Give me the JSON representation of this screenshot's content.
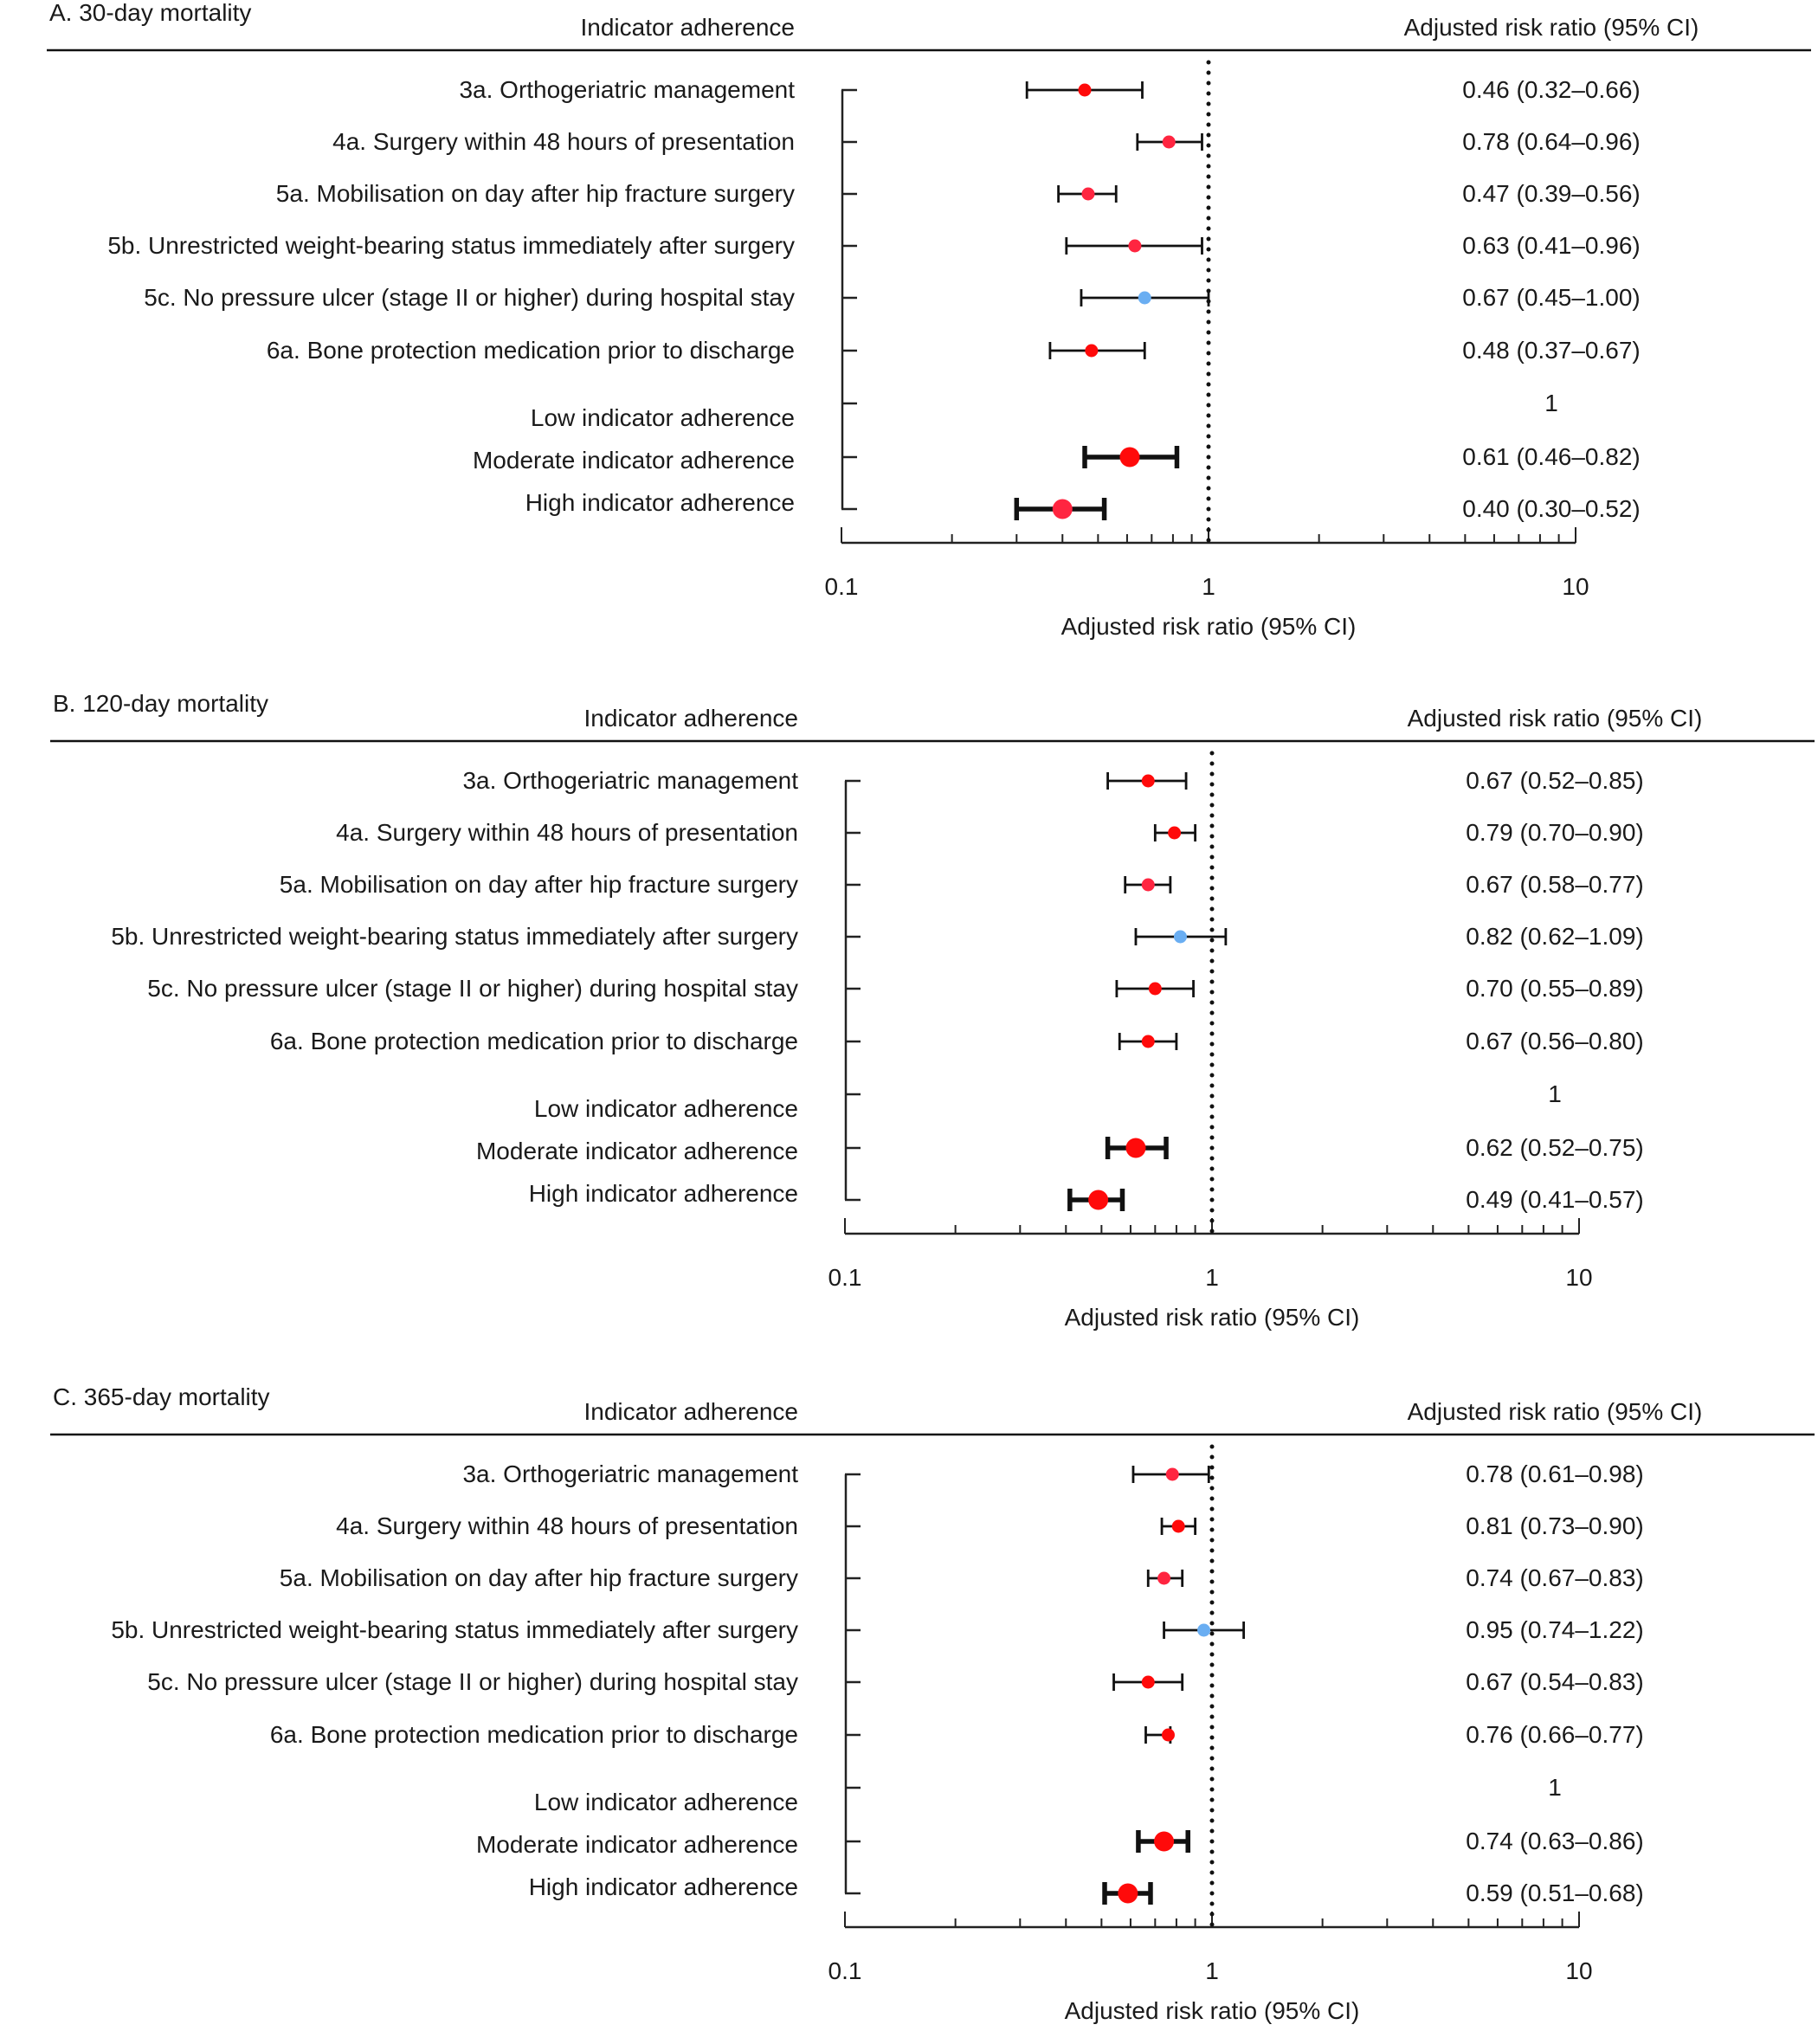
{
  "chart_data": [
    {
      "type": "forest",
      "title": "A. 30-day mortality",
      "left_header": "Indicator adherence",
      "right_header": "Adjusted risk ratio (95% CI)",
      "xlabel": "Adjusted risk ratio (95% CI)",
      "xscale": "log",
      "xlim": [
        0.1,
        10
      ],
      "xticks": [
        "0.1",
        "1",
        "10"
      ],
      "reference_line": 1,
      "rows": [
        {
          "label": "3a. Orthogeriatric management",
          "rr": 0.46,
          "lo": 0.32,
          "hi": 0.66,
          "text": "0.46 (0.32–0.66)",
          "color": "#ff0a0a"
        },
        {
          "label": "4a. Surgery within 48 hours of presentation",
          "rr": 0.78,
          "lo": 0.64,
          "hi": 0.96,
          "text": "0.78 (0.64–0.96)",
          "color": "#ff2540"
        },
        {
          "label": "5a. Mobilisation on day after hip fracture surgery",
          "rr": 0.47,
          "lo": 0.39,
          "hi": 0.56,
          "text": "0.47 (0.39–0.56)",
          "color": "#ff2540"
        },
        {
          "label": "5b. Unrestricted weight-bearing status immediately after surgery",
          "rr": 0.63,
          "lo": 0.41,
          "hi": 0.96,
          "text": "0.63 (0.41–0.96)",
          "color": "#ff2540"
        },
        {
          "label": "5c. No pressure ulcer (stage II or higher) during hospital stay",
          "rr": 0.67,
          "lo": 0.45,
          "hi": 1.0,
          "text": "0.67 (0.45–1.00)",
          "color": "#6aaef2"
        },
        {
          "label": "6a. Bone protection medication prior to discharge",
          "rr": 0.48,
          "lo": 0.37,
          "hi": 0.67,
          "text": "0.48 (0.37–0.67)",
          "color": "#ff0a0a"
        },
        {
          "label": "Low indicator adherence",
          "rr": null,
          "text": "1",
          "summary": true
        },
        {
          "label": "Moderate indicator adherence",
          "rr": 0.61,
          "lo": 0.46,
          "hi": 0.82,
          "text": "0.61 (0.46–0.82)",
          "color": "#ff0a0a",
          "summary": true
        },
        {
          "label": "High indicator adherence",
          "rr": 0.4,
          "lo": 0.3,
          "hi": 0.52,
          "text": "0.40 (0.30–0.52)",
          "color": "#ff2540",
          "summary": true
        }
      ]
    },
    {
      "type": "forest",
      "title": "B. 120-day mortality",
      "left_header": "Indicator adherence",
      "right_header": "Adjusted risk ratio (95% CI)",
      "xlabel": "Adjusted risk ratio (95% CI)",
      "xscale": "log",
      "xlim": [
        0.1,
        10
      ],
      "xticks": [
        "0.1",
        "1",
        "10"
      ],
      "reference_line": 1,
      "rows": [
        {
          "label": "3a. Orthogeriatric management",
          "rr": 0.67,
          "lo": 0.52,
          "hi": 0.85,
          "text": "0.67 (0.52–0.85)",
          "color": "#ff0a0a"
        },
        {
          "label": "4a. Surgery within 48 hours of presentation",
          "rr": 0.79,
          "lo": 0.7,
          "hi": 0.9,
          "text": "0.79 (0.70–0.90)",
          "color": "#ff0a0a"
        },
        {
          "label": "5a. Mobilisation on day after hip fracture surgery",
          "rr": 0.67,
          "lo": 0.58,
          "hi": 0.77,
          "text": "0.67 (0.58–0.77)",
          "color": "#ff2540"
        },
        {
          "label": "5b. Unrestricted weight-bearing status immediately after surgery",
          "rr": 0.82,
          "lo": 0.62,
          "hi": 1.09,
          "text": "0.82 (0.62–1.09)",
          "color": "#6aaef2"
        },
        {
          "label": "5c. No pressure ulcer (stage II or higher) during hospital stay",
          "rr": 0.7,
          "lo": 0.55,
          "hi": 0.89,
          "text": "0.70 (0.55–0.89)",
          "color": "#ff0a0a"
        },
        {
          "label": "6a. Bone protection medication prior to discharge",
          "rr": 0.67,
          "lo": 0.56,
          "hi": 0.8,
          "text": "0.67 (0.56–0.80)",
          "color": "#ff0a0a"
        },
        {
          "label": "Low indicator adherence",
          "rr": null,
          "text": "1",
          "summary": true
        },
        {
          "label": "Moderate indicator adherence",
          "rr": 0.62,
          "lo": 0.52,
          "hi": 0.75,
          "text": "0.62 (0.52–0.75)",
          "color": "#ff0a0a",
          "summary": true
        },
        {
          "label": "High indicator adherence",
          "rr": 0.49,
          "lo": 0.41,
          "hi": 0.57,
          "text": "0.49 (0.41–0.57)",
          "color": "#ff0a0a",
          "summary": true
        }
      ]
    },
    {
      "type": "forest",
      "title": "C. 365-day mortality",
      "left_header": "Indicator adherence",
      "right_header": "Adjusted risk ratio (95% CI)",
      "xlabel": "Adjusted risk ratio (95% CI)",
      "xscale": "log",
      "xlim": [
        0.1,
        10
      ],
      "xticks": [
        "0.1",
        "1",
        "10"
      ],
      "reference_line": 1,
      "rows": [
        {
          "label": "3a. Orthogeriatric management",
          "rr": 0.78,
          "lo": 0.61,
          "hi": 0.98,
          "text": "0.78 (0.61–0.98)",
          "color": "#ff2540"
        },
        {
          "label": "4a. Surgery within 48 hours of presentation",
          "rr": 0.81,
          "lo": 0.73,
          "hi": 0.9,
          "text": "0.81 (0.73–0.90)",
          "color": "#ff0a0a"
        },
        {
          "label": "5a. Mobilisation on day after hip fracture surgery",
          "rr": 0.74,
          "lo": 0.67,
          "hi": 0.83,
          "text": "0.74 (0.67–0.83)",
          "color": "#ff2540"
        },
        {
          "label": "5b. Unrestricted weight-bearing status immediately after surgery",
          "rr": 0.95,
          "lo": 0.74,
          "hi": 1.22,
          "text": "0.95 (0.74–1.22)",
          "color": "#6aaef2"
        },
        {
          "label": "5c. No pressure ulcer (stage II or higher) during hospital stay",
          "rr": 0.67,
          "lo": 0.54,
          "hi": 0.83,
          "text": "0.67 (0.54–0.83)",
          "color": "#ff0a0a"
        },
        {
          "label": "6a. Bone protection medication prior to discharge",
          "rr": 0.76,
          "lo": 0.66,
          "hi": 0.77,
          "text": "0.76 (0.66–0.77)",
          "color": "#ff0a0a"
        },
        {
          "label": "Low indicator adherence",
          "rr": null,
          "text": "1",
          "summary": true
        },
        {
          "label": "Moderate indicator adherence",
          "rr": 0.74,
          "lo": 0.63,
          "hi": 0.86,
          "text": "0.74 (0.63–0.86)",
          "color": "#ff0a0a",
          "summary": true
        },
        {
          "label": "High indicator adherence",
          "rr": 0.59,
          "lo": 0.51,
          "hi": 0.68,
          "text": "0.59 (0.51–0.68)",
          "color": "#ff0a0a",
          "summary": true
        }
      ]
    }
  ]
}
